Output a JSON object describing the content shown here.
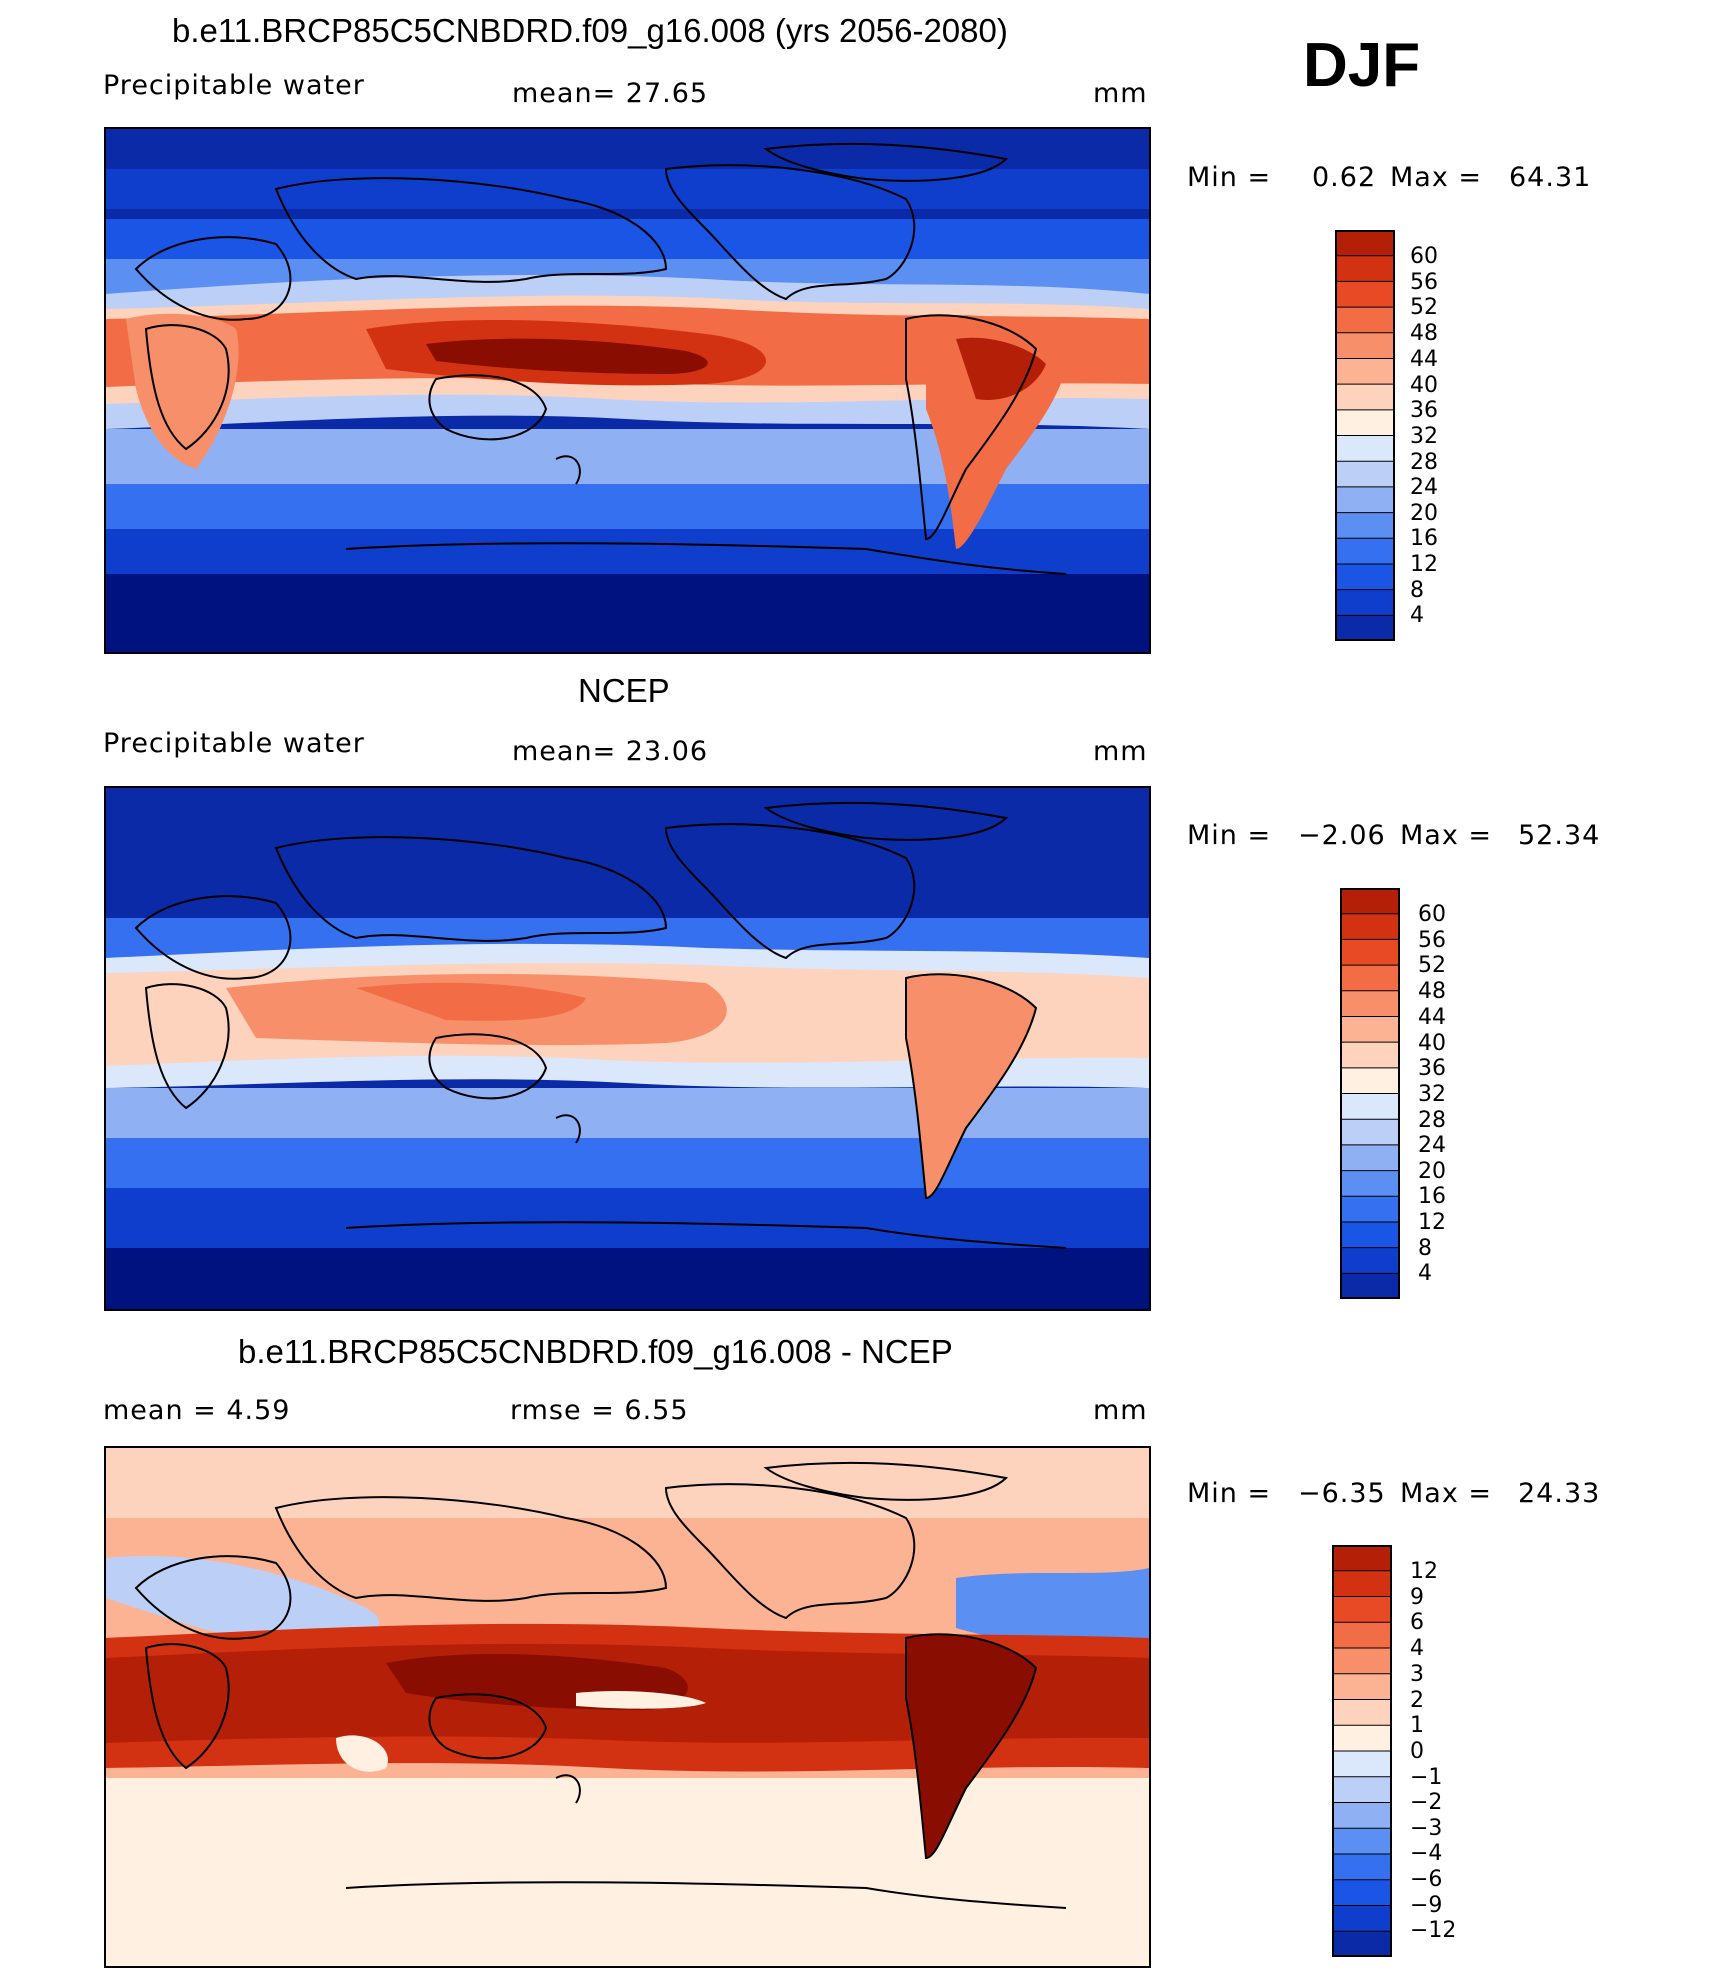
{
  "season": "DJF",
  "units": "mm",
  "colors": {
    "pw": [
      "#00127f",
      "#0a2aa8",
      "#0f3ecc",
      "#1a55e6",
      "#3470f0",
      "#5b8ff2",
      "#8fb1f4",
      "#bcd0f7",
      "#dbe7fb",
      "#fff0e2",
      "#fdd3bd",
      "#fbb394",
      "#f7906a",
      "#f26c45",
      "#e84a25",
      "#d33212",
      "#b41f08",
      "#8a0d02"
    ],
    "diff": [
      "#00127f",
      "#0a2aa8",
      "#0f3ecc",
      "#1a55e6",
      "#3470f0",
      "#5b8ff2",
      "#8fb1f4",
      "#bcd0f7",
      "#dbe7fb",
      "#fff0e2",
      "#fdd3bd",
      "#fbb394",
      "#f7906a",
      "#f26c45",
      "#e84a25",
      "#d33212",
      "#b41f08",
      "#8a0d02"
    ]
  },
  "panels": [
    {
      "title": "b.e11.BRCP85C5CNBDRD.f09_g16.008 (yrs 2056-2080)",
      "left_label": "Precipitable  water",
      "mid_label": "mean=   27.65",
      "right_label": "mm",
      "min_label": "Min  =",
      "min_value": "0.62",
      "max_label": "Max  =",
      "max_value": "64.31",
      "colorbar_labels": [
        "60",
        "56",
        "52",
        "48",
        "44",
        "40",
        "36",
        "32",
        "28",
        "24",
        "20",
        "16",
        "12",
        "8",
        "4"
      ]
    },
    {
      "title": "NCEP",
      "left_label": "Precipitable  water",
      "mid_label": "mean=   23.06",
      "right_label": "mm",
      "min_label": "Min  =",
      "min_value": "−2.06",
      "max_label": "Max  =",
      "max_value": "52.34",
      "colorbar_labels": [
        "60",
        "56",
        "52",
        "48",
        "44",
        "40",
        "36",
        "32",
        "28",
        "24",
        "20",
        "16",
        "12",
        "8",
        "4"
      ]
    },
    {
      "title": "b.e11.BRCP85C5CNBDRD.f09_g16.008 - NCEP",
      "left_label": "mean  =      4.59",
      "mid_label": "rmse  =      6.55",
      "right_label": "mm",
      "min_label": "Min  =",
      "min_value": "−6.35",
      "max_label": "Max  =",
      "max_value": "24.33",
      "colorbar_labels": [
        "12",
        "9",
        "6",
        "4",
        "3",
        "2",
        "1",
        "0",
        "−1",
        "−2",
        "−3",
        "−4",
        "−6",
        "−9",
        "−12"
      ]
    }
  ]
}
